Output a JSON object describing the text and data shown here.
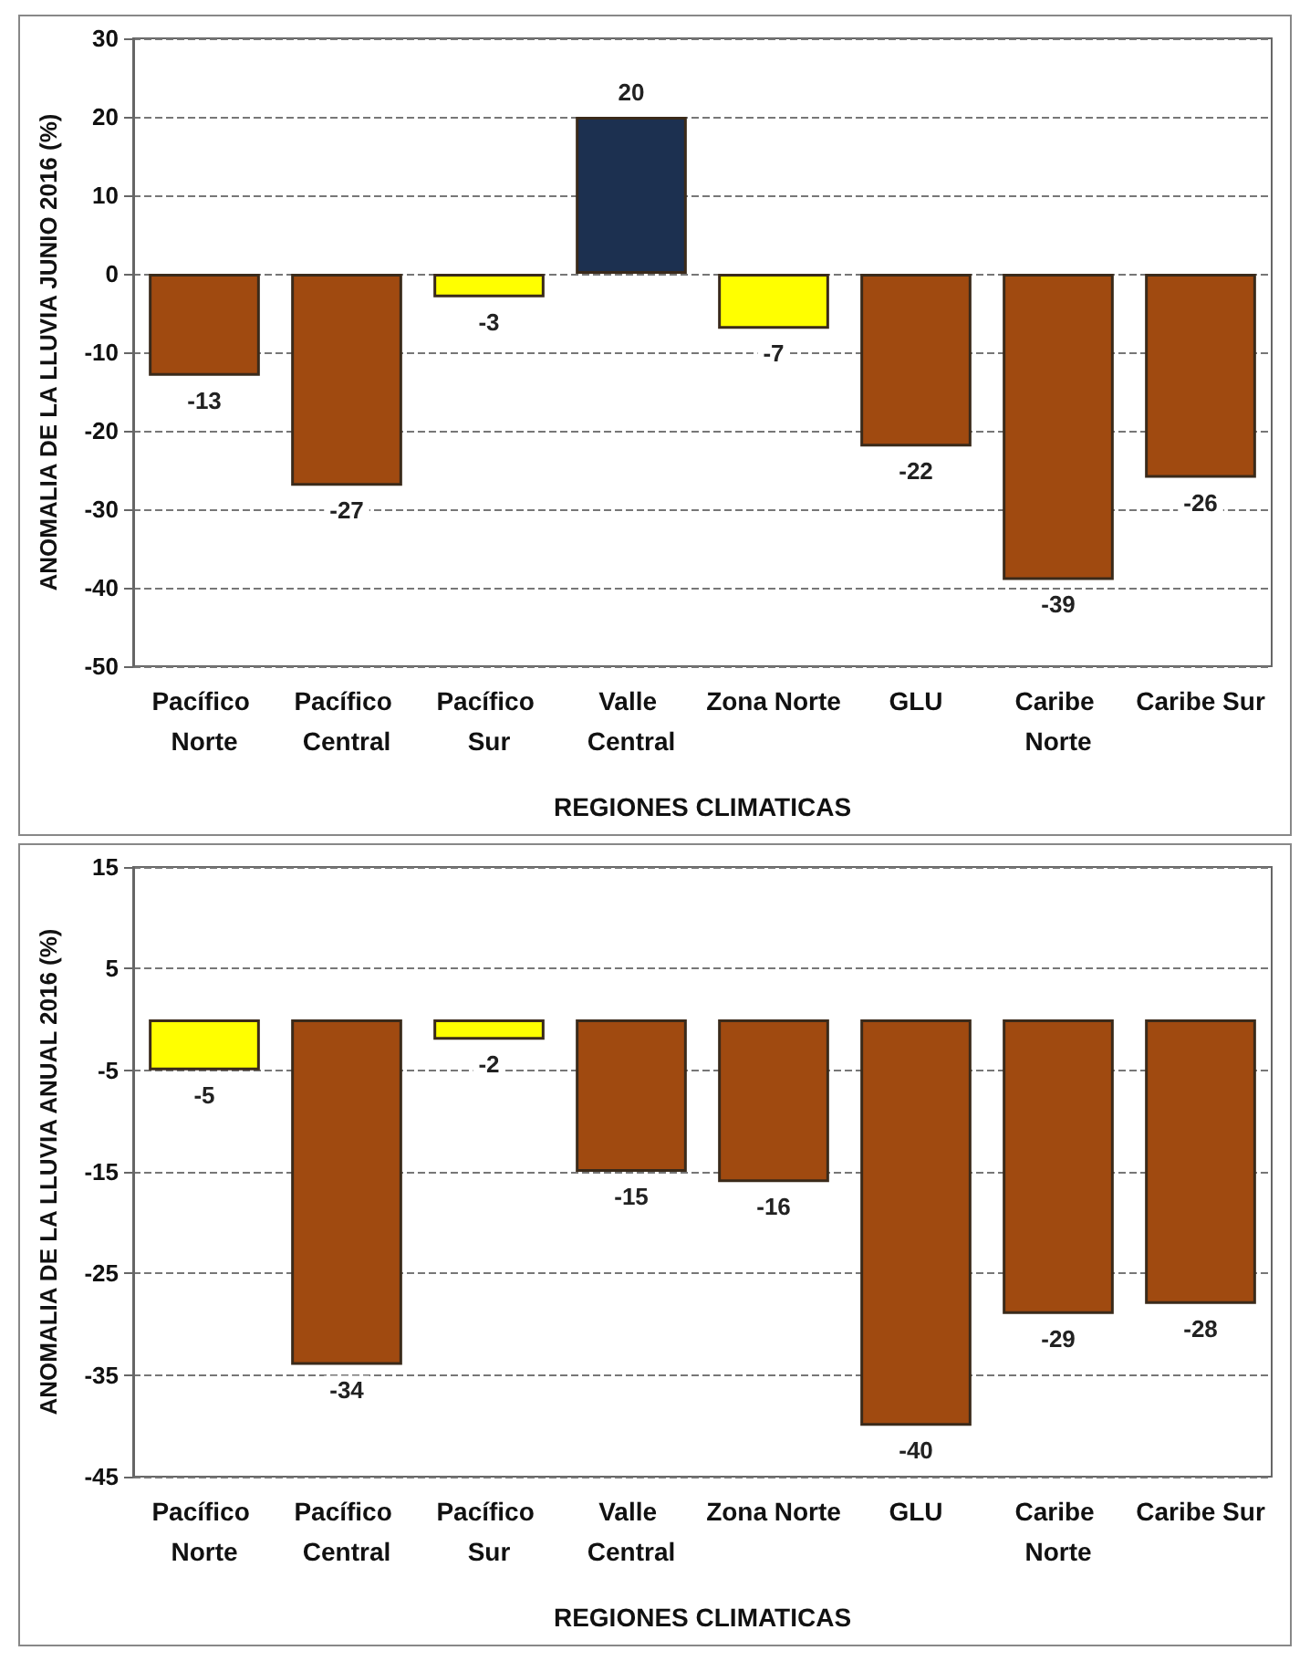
{
  "chart_data": [
    {
      "type": "bar",
      "ylabel": "ANOMALIA DE LA LLUVIA JUNIO 2016 (%)",
      "xlabel": "REGIONES CLIMATICAS",
      "categories": [
        "Pacífico Norte",
        "Pacífico Central",
        "Pacífico Sur",
        "Valle Central",
        "Zona Norte",
        "GLU",
        "Caribe Norte",
        "Caribe Sur"
      ],
      "values": [
        -13,
        -27,
        -3,
        20,
        -7,
        -22,
        -39,
        -26
      ],
      "colors": [
        "#a04a10",
        "#a04a10",
        "#ffff00",
        "#1c3050",
        "#ffff00",
        "#a04a10",
        "#a04a10",
        "#a04a10"
      ],
      "ylim": [
        -50,
        30
      ],
      "yticks": [
        -50,
        -40,
        -30,
        -20,
        -10,
        0,
        10,
        20,
        30
      ],
      "grid": "y",
      "data_labels": true
    },
    {
      "type": "bar",
      "ylabel": "ANOMALIA DE LA LLUVIA ANUAL 2016 (%)",
      "xlabel": "REGIONES CLIMATICAS",
      "categories": [
        "Pacífico Norte",
        "Pacífico Central",
        "Pacífico Sur",
        "Valle Central",
        "Zona Norte",
        "GLU",
        "Caribe Norte",
        "Caribe Sur"
      ],
      "values": [
        -5,
        -34,
        -2,
        -15,
        -16,
        -40,
        -29,
        -28
      ],
      "colors": [
        "#ffff00",
        "#a04a10",
        "#ffff00",
        "#a04a10",
        "#a04a10",
        "#a04a10",
        "#a04a10",
        "#a04a10"
      ],
      "ylim": [
        -45,
        15
      ],
      "yticks": [
        -45,
        -35,
        -25,
        -15,
        -5,
        5,
        15
      ],
      "grid": "y",
      "data_labels": true
    }
  ]
}
